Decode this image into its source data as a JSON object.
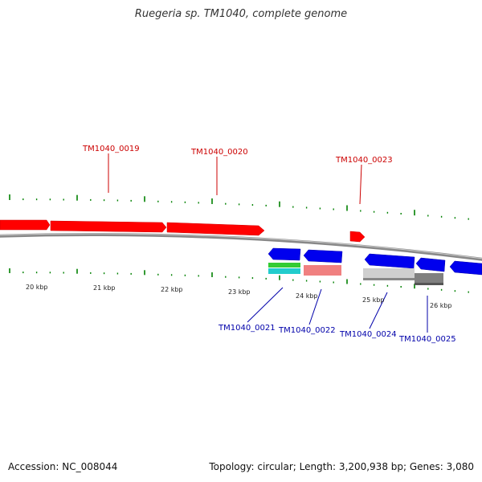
{
  "title": "Ruegeria sp. TM1040, complete genome",
  "footer": {
    "accession": "Accession: NC_008044",
    "summary": "Topology: circular; Length: 3,200,938 bp; Genes: 3,080"
  },
  "colors": {
    "forward_gene": "#ff0000",
    "reverse_gene": "#0000ee",
    "tick": "#008000",
    "backbone": "#888888",
    "label_forward": "#cc0000",
    "label_reverse": "#0000aa"
  },
  "scale_labels": [
    "20 kbp",
    "21 kbp",
    "22 kbp",
    "23 kbp",
    "24 kbp",
    "25 kbp",
    "26 kbp"
  ],
  "forward_gene_labels": [
    "TM1040_0019",
    "TM1040_0020",
    "TM1040_0023"
  ],
  "reverse_gene_labels": [
    "TM1040_0021",
    "TM1040_0022",
    "TM1040_0024",
    "TM1040_0025"
  ]
}
